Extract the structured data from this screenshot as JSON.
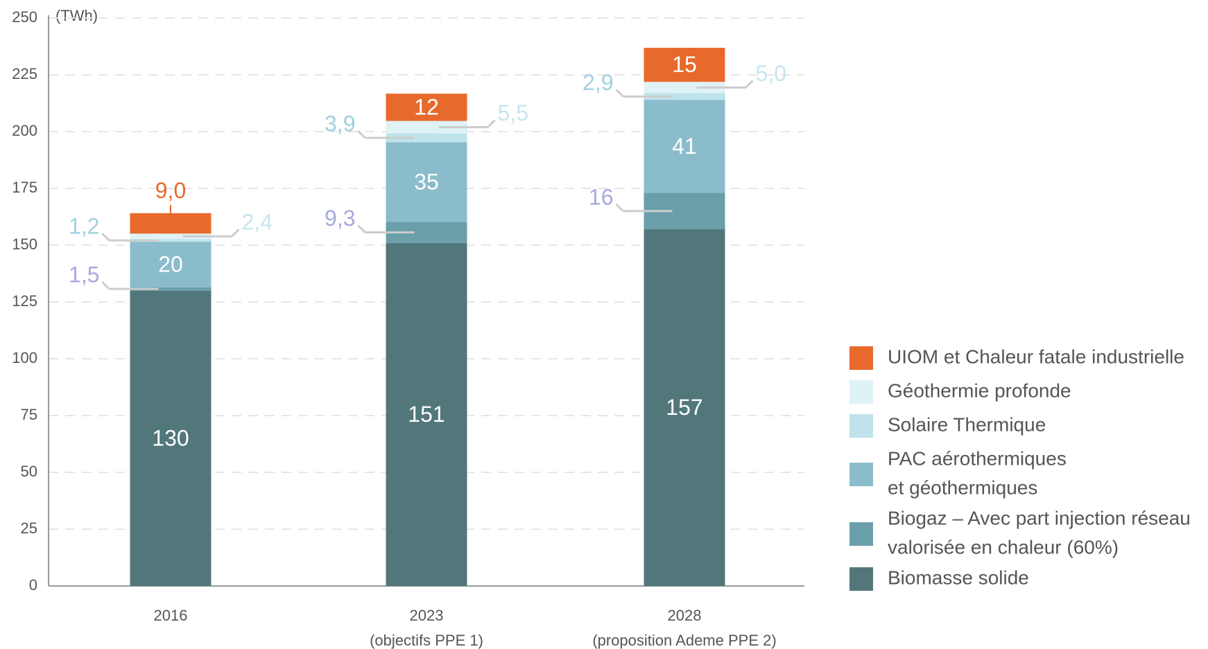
{
  "chart_data": {
    "type": "stacked_bar",
    "y_unit": "(TWh)",
    "categories": [
      [
        "2016"
      ],
      [
        "2023",
        "(objectifs PPE 1)"
      ],
      [
        "2028",
        "(proposition Ademe PPE 2)"
      ]
    ],
    "series": [
      {
        "name": [
          "Biomasse solide"
        ],
        "color": "#52777b",
        "values": [
          130,
          151,
          157
        ]
      },
      {
        "name": [
          "Biogaz – Avec part injection réseau",
          "valorisée en chaleur (60%)"
        ],
        "color": "#6a9faa",
        "values": [
          1.5,
          9.3,
          16
        ],
        "value_labels": [
          "1,5",
          "9,3",
          "16"
        ]
      },
      {
        "name": [
          "PAC aérothermiques",
          "et géothermiques"
        ],
        "color": "#8bbccb",
        "values": [
          20,
          35,
          41
        ]
      },
      {
        "name": [
          "Solaire Thermique"
        ],
        "color": "#bfe3ea",
        "values": [
          1.2,
          3.9,
          2.9
        ],
        "value_labels": [
          "1,2",
          "3,9",
          "2,9"
        ]
      },
      {
        "name": [
          "Géothermie profonde"
        ],
        "color": "#dff2f5",
        "values": [
          2.4,
          5.5,
          5.0
        ],
        "value_labels": [
          "2,4",
          "5,5",
          "5,0"
        ]
      },
      {
        "name": [
          "UIOM et Chaleur fatale industrielle"
        ],
        "color": "#e8692c",
        "values": [
          9.0,
          12,
          15
        ],
        "value_labels": [
          "9,0",
          "12",
          "15"
        ]
      }
    ],
    "ylim": [
      0,
      250
    ],
    "yticks": [
      0,
      25,
      50,
      75,
      100,
      125,
      150,
      175,
      200,
      225,
      250
    ],
    "grid": true
  }
}
